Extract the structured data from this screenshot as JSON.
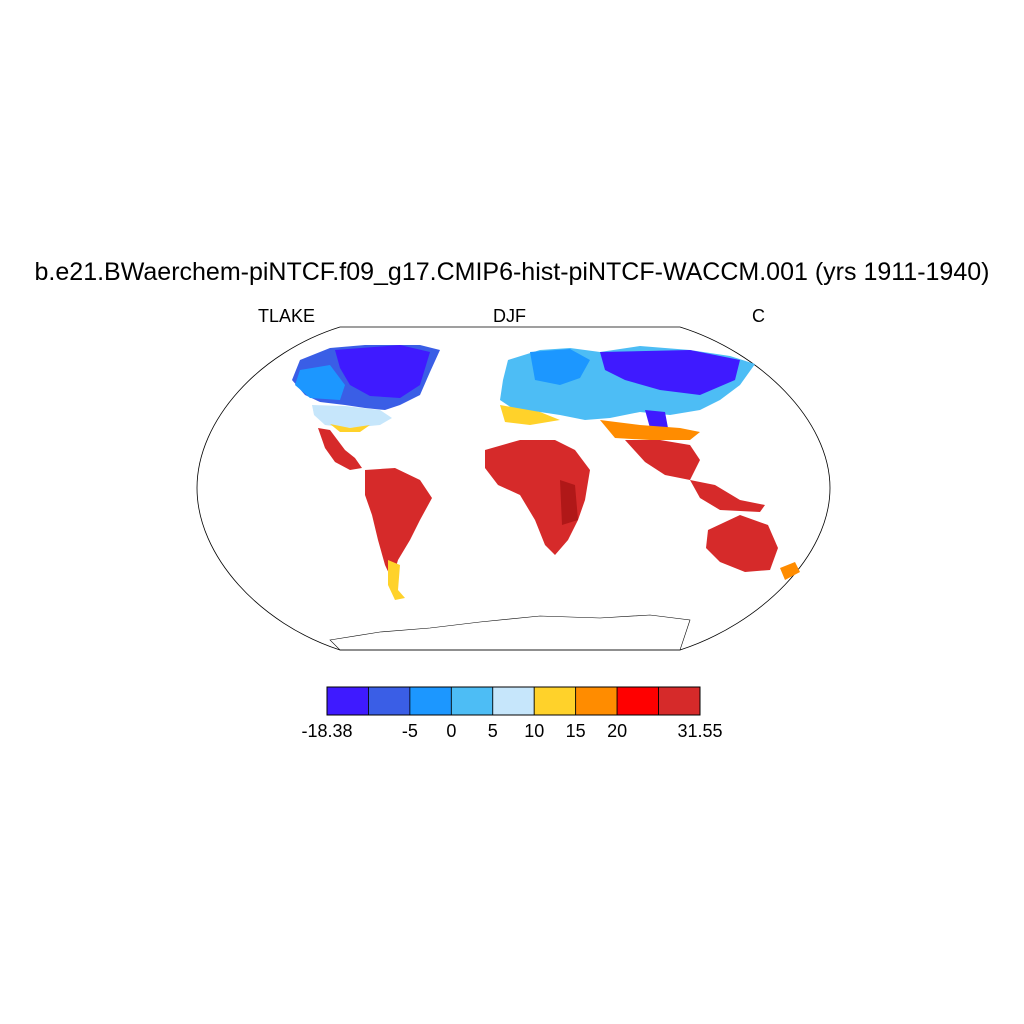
{
  "title": "b.e21.BWaerchem-piNTCF.f09_g17.CMIP6-hist-piNTCF-WACCM.001 (yrs 1911-1940)",
  "left_label": "TLAKE",
  "center_label": "DJF",
  "right_label": "C",
  "colorbar": {
    "colors": [
      "#3f1aff",
      "#3a5ee6",
      "#1c97ff",
      "#4dbdf5",
      "#c6e6fb",
      "#ffd22a",
      "#ff8c00",
      "#ff0000",
      "#d62a2a"
    ],
    "labels": [
      "-18.38",
      "",
      "-5",
      "0",
      "5",
      "10",
      "15",
      "20",
      "",
      "31.55"
    ]
  },
  "colors": {
    "land_outline": "#000000",
    "frame": "#000000"
  }
}
